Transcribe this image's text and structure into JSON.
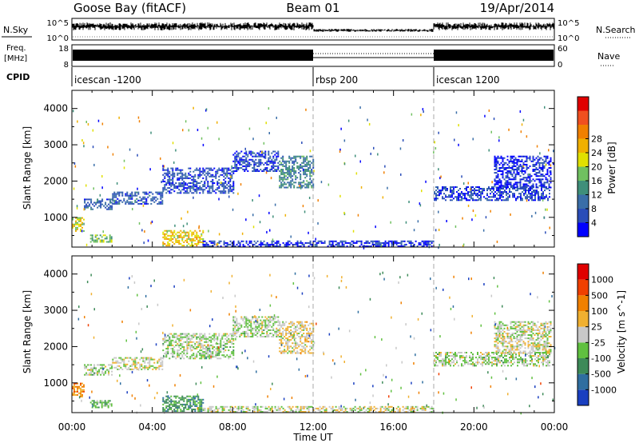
{
  "header": {
    "station": "Goose Bay (fitACF)",
    "beam": "Beam 01",
    "date": "19/Apr/2014"
  },
  "top_panels": {
    "nsky_label": "N.Sky",
    "nsky_ticks": [
      "10^5",
      "10^0"
    ],
    "nsearch_label": "N.Search",
    "nsearch_ticks": [
      "10^5",
      "10^0"
    ],
    "freq_label_line1": "Freq.",
    "freq_label_line2": "[MHz]",
    "freq_ticks": [
      "18",
      "8"
    ],
    "nave_label": "Nave",
    "nave_ticks": [
      "60",
      "0"
    ],
    "cpid_label": "CPID",
    "cpid_segments": [
      {
        "label": "icescan -1200",
        "start_hour": 0
      },
      {
        "label": "rbsp 200",
        "start_hour": 12
      },
      {
        "label": "icescan 1200",
        "start_hour": 18
      }
    ]
  },
  "chart_data": [
    {
      "type": "heatmap",
      "panel": "power",
      "ylabel": "Slant Range [km]",
      "yticks": [
        1000,
        2000,
        3000,
        4000
      ],
      "ylim": [
        180,
        4500
      ],
      "xlim_hours": [
        0,
        24
      ],
      "colorbar": {
        "label": "Power [dB]",
        "ticks": [
          "4",
          "8",
          "12",
          "16",
          "20",
          "24",
          "28"
        ],
        "colors": [
          "#0000ff",
          "#2a4db8",
          "#3a6ea8",
          "#3f8f7a",
          "#70c060",
          "#e0e000",
          "#f0b000",
          "#f08000",
          "#f05020",
          "#e00000"
        ]
      },
      "echo_bands": [
        {
          "t0": 0.0,
          "t1": 0.6,
          "r0": 600,
          "r1": 1000,
          "level": 0.55
        },
        {
          "t0": 0.6,
          "t1": 2.0,
          "r0": 1200,
          "r1": 1500,
          "level": 0.2
        },
        {
          "t0": 2.0,
          "t1": 4.5,
          "r0": 1350,
          "r1": 1700,
          "level": 0.2
        },
        {
          "t0": 4.5,
          "t1": 8.0,
          "r0": 1650,
          "r1": 2350,
          "level": 0.15
        },
        {
          "t0": 8.0,
          "t1": 10.3,
          "r0": 2250,
          "r1": 2800,
          "level": 0.15
        },
        {
          "t0": 10.3,
          "t1": 12.0,
          "r0": 1800,
          "r1": 2700,
          "level": 0.3
        },
        {
          "t0": 0.9,
          "t1": 2.0,
          "r0": 300,
          "r1": 500,
          "level": 0.45
        },
        {
          "t0": 4.5,
          "t1": 6.5,
          "r0": 200,
          "r1": 650,
          "level": 0.6
        },
        {
          "t0": 6.5,
          "t1": 18.0,
          "r0": 180,
          "r1": 320,
          "level": 0.1
        },
        {
          "t0": 18.0,
          "t1": 23.8,
          "r0": 1450,
          "r1": 1850,
          "level": 0.15
        },
        {
          "t0": 21.0,
          "t1": 23.8,
          "r0": 1800,
          "r1": 2700,
          "level": 0.1
        }
      ]
    },
    {
      "type": "heatmap",
      "panel": "velocity",
      "ylabel": "Slant Range [km]",
      "xlabel": "Time UT",
      "xticks": [
        "00:00",
        "04:00",
        "08:00",
        "12:00",
        "16:00",
        "20:00",
        "00:00"
      ],
      "yticks": [
        1000,
        2000,
        3000,
        4000
      ],
      "ylim": [
        180,
        4500
      ],
      "xlim_hours": [
        0,
        24
      ],
      "colorbar": {
        "label": "Velocity [m s^-1]",
        "ticks": [
          "1000",
          "500",
          "100",
          "25",
          "-25",
          "-100",
          "-500",
          "-1000"
        ],
        "colors": [
          "#1a3fc0",
          "#2f6ea0",
          "#3d8a58",
          "#60c040",
          "#c8c8c8",
          "#f0b030",
          "#f08000",
          "#f04000",
          "#e00000"
        ]
      },
      "echo_bands": [
        {
          "t0": 0.0,
          "t1": 0.6,
          "r0": 600,
          "r1": 1000,
          "level": 0.7
        },
        {
          "t0": 0.6,
          "t1": 2.0,
          "r0": 1200,
          "r1": 1500,
          "level": 0.45
        },
        {
          "t0": 2.0,
          "t1": 4.5,
          "r0": 1350,
          "r1": 1700,
          "level": 0.5
        },
        {
          "t0": 4.5,
          "t1": 8.0,
          "r0": 1650,
          "r1": 2350,
          "level": 0.45
        },
        {
          "t0": 8.0,
          "t1": 10.3,
          "r0": 2250,
          "r1": 2800,
          "level": 0.45
        },
        {
          "t0": 10.3,
          "t1": 12.0,
          "r0": 1800,
          "r1": 2700,
          "level": 0.55
        },
        {
          "t0": 0.9,
          "t1": 2.0,
          "r0": 300,
          "r1": 500,
          "level": 0.35
        },
        {
          "t0": 4.5,
          "t1": 6.5,
          "r0": 200,
          "r1": 650,
          "level": 0.3
        },
        {
          "t0": 6.5,
          "t1": 18.0,
          "r0": 180,
          "r1": 320,
          "level": 0.5
        },
        {
          "t0": 18.0,
          "t1": 23.8,
          "r0": 1450,
          "r1": 1850,
          "level": 0.45
        },
        {
          "t0": 21.0,
          "t1": 23.8,
          "r0": 1800,
          "r1": 2700,
          "level": 0.5
        }
      ]
    }
  ]
}
